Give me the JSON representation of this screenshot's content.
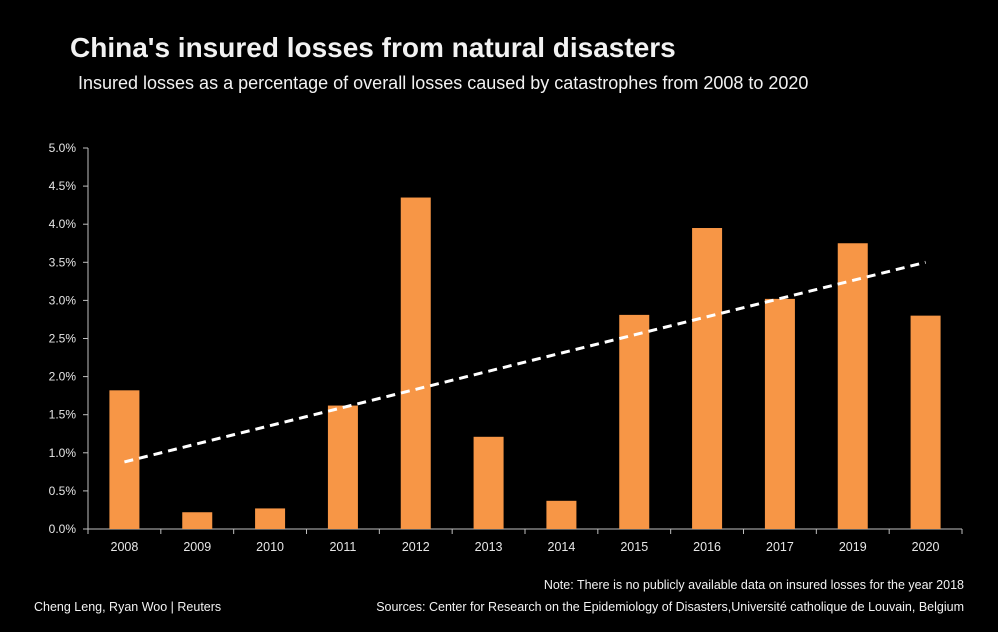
{
  "title": "China's insured losses from natural disasters",
  "subtitle": "Insured losses as a percentage of overall losses caused by catastrophes from 2008 to 2020",
  "note": "Note: There is no publicly available data on insured losses for the year 2018",
  "source": "Sources: Center for Research on the Epidemiology of Disasters,Université  catholique de Louvain,  Belgium",
  "credit": "Cheng Leng, Ryan Woo | Reuters",
  "colors": {
    "bar": "#F79646",
    "trend": "#FFFFFF",
    "axis": "#BFBFBF",
    "background": "#000000"
  },
  "chart_data": {
    "type": "bar",
    "categories": [
      "2008",
      "2009",
      "2010",
      "2011",
      "2012",
      "2013",
      "2014",
      "2015",
      "2016",
      "2017",
      "2019",
      "2020"
    ],
    "values": [
      1.82,
      0.22,
      0.27,
      1.62,
      4.35,
      1.21,
      0.37,
      2.81,
      3.95,
      3.02,
      3.75,
      2.8
    ],
    "unit": "%",
    "ylim": [
      0,
      5
    ],
    "yticks": [
      "0.0%",
      "0.5%",
      "1.0%",
      "1.5%",
      "2.0%",
      "2.5%",
      "3.0%",
      "3.5%",
      "4.0%",
      "4.5%",
      "5.0%"
    ],
    "trendline": {
      "style": "dashed",
      "start": 0.88,
      "end": 3.5
    },
    "xlabel": "",
    "ylabel": "",
    "grid": false,
    "legend": "none"
  }
}
